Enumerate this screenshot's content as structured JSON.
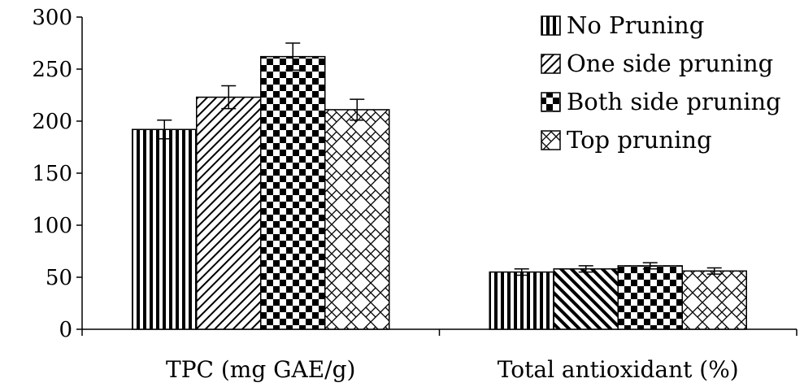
{
  "chart_data": {
    "type": "bar",
    "title": "",
    "xlabel": "",
    "ylabel": "",
    "ylim": [
      0,
      300
    ],
    "yticks": [
      0,
      50,
      100,
      150,
      200,
      250,
      300
    ],
    "grid": false,
    "legend_position": "top-right",
    "categories": [
      "TPC (mg GAE/g)",
      "Total antioxidant (%)"
    ],
    "series": [
      {
        "name": "No Pruning",
        "pattern": "vertical-lines",
        "values": [
          192,
          55
        ],
        "errors": [
          9,
          3
        ]
      },
      {
        "name": "One side pruning",
        "pattern": "diagonal-lines",
        "values": [
          223,
          58
        ],
        "errors": [
          11,
          3
        ]
      },
      {
        "name": "Both side pruning",
        "pattern": "checkerboard",
        "values": [
          262,
          61
        ],
        "errors": [
          13,
          3
        ]
      },
      {
        "name": "Top pruning",
        "pattern": "zigzag",
        "values": [
          211,
          56
        ],
        "errors": [
          10,
          3
        ]
      }
    ],
    "colors": {
      "stroke": "#000000",
      "fill_background": "#ffffff"
    }
  }
}
